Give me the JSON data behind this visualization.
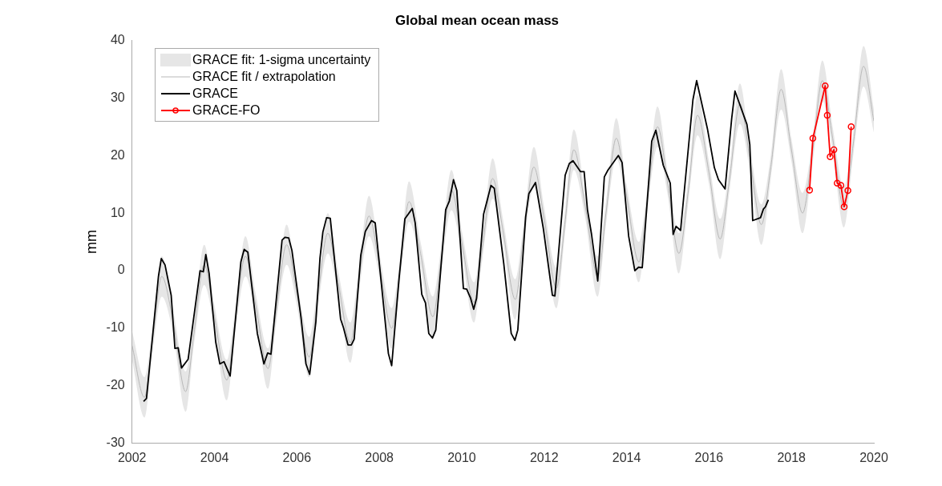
{
  "chart_data": {
    "type": "line",
    "title": "Global mean ocean mass",
    "ylabel": "mm",
    "xlim": [
      2002,
      2020
    ],
    "xticks": [
      2002,
      2004,
      2006,
      2008,
      2010,
      2012,
      2014,
      2016,
      2018,
      2020
    ],
    "ylim": [
      -30,
      40
    ],
    "yticks": [
      -30,
      -20,
      -10,
      0,
      10,
      20,
      30,
      40
    ],
    "grid": false,
    "legend": "top left",
    "annotations": [
      "GRACE fit: 1-sigma uncertainty"
    ],
    "series": [
      {
        "name": "GRACE fit / extrapolation",
        "type": "line",
        "color": "#b8b8b8",
        "marker": "none",
        "x": [
          2002.0,
          2002.3,
          2002.5,
          2002.72,
          2003.0,
          2003.3,
          2003.5,
          2003.75,
          2004.0,
          2004.3,
          2004.5,
          2004.75,
          2005.0,
          2005.3,
          2005.5,
          2005.75,
          2006.0,
          2006.3,
          2006.5,
          2006.75,
          2007.0,
          2007.3,
          2007.5,
          2007.75,
          2008.0,
          2008.3,
          2008.5,
          2008.72,
          2009.0,
          2009.3,
          2009.5,
          2009.75,
          2010.0,
          2010.3,
          2010.5,
          2010.75,
          2011.0,
          2011.3,
          2011.5,
          2011.75,
          2012.0,
          2012.3,
          2012.5,
          2012.72,
          2013.0,
          2013.3,
          2013.5,
          2013.75,
          2014.0,
          2014.3,
          2014.5,
          2014.75,
          2015.0,
          2015.27,
          2015.5,
          2015.72,
          2016.0,
          2016.27,
          2016.5,
          2016.75,
          2017.0,
          2017.27,
          2017.5,
          2017.75,
          2018.0,
          2018.27,
          2018.5,
          2018.75,
          2019.0,
          2019.27,
          2019.5,
          2019.75,
          2020.0
        ],
        "values": [
          -13,
          -22,
          -12,
          -1,
          -9,
          -21,
          -11,
          1,
          -8,
          -19,
          -9,
          2.5,
          -6,
          -17,
          -7,
          4.5,
          -4,
          -15,
          -5,
          6.5,
          -2,
          -12.5,
          -2,
          9.5,
          1,
          -10,
          0,
          12,
          3,
          -8,
          2,
          14,
          5,
          -5.5,
          4,
          16,
          7,
          -5,
          6,
          18,
          9,
          -3,
          8,
          21,
          11,
          -1,
          10,
          23,
          13,
          1.5,
          12,
          25,
          15,
          3,
          14,
          27,
          17,
          5.5,
          16,
          29,
          19,
          8,
          18,
          31.5,
          21,
          10,
          20,
          33,
          23,
          11,
          22,
          35.5,
          26
        ],
        "lower": [
          -15.5,
          -25.5,
          -14,
          -4.5,
          -11,
          -24.5,
          -13,
          -2.5,
          -10,
          -22.5,
          -11,
          -1,
          -8,
          -20.5,
          -9,
          1,
          -6,
          -18.5,
          -7,
          3,
          -4,
          -16,
          -4,
          6,
          -1,
          -13.5,
          -2,
          8.5,
          1,
          -11.5,
          0,
          10.5,
          3,
          -9,
          2,
          12.5,
          5,
          -8.5,
          4,
          14.5,
          7,
          -6.5,
          6,
          17.5,
          9,
          -4.5,
          8,
          19.5,
          11,
          -2,
          10,
          21.5,
          13,
          -0.5,
          12,
          23.5,
          15,
          2,
          14,
          25.5,
          17,
          4.5,
          16,
          28,
          19,
          6.5,
          18,
          29.5,
          21,
          7.5,
          20,
          32,
          24
        ],
        "upper": [
          -10.5,
          -18.5,
          -10,
          2.5,
          -7,
          -17.5,
          -9,
          4.5,
          -6,
          -15.5,
          -7,
          6,
          -4,
          -13.5,
          -5,
          8,
          -2,
          -11.5,
          -3,
          10,
          0,
          -9,
          0,
          13,
          3,
          -6.5,
          2,
          15.5,
          5,
          -4.5,
          4,
          17.5,
          7,
          -2,
          6,
          19.5,
          9,
          -1.5,
          8,
          21.5,
          11,
          0.5,
          10,
          24.5,
          13,
          2.5,
          12,
          26.5,
          15,
          5,
          14,
          28.5,
          17,
          6.5,
          16,
          30.5,
          19,
          9,
          18,
          32.5,
          21,
          11.5,
          20,
          35,
          23,
          13.5,
          22,
          36.5,
          25,
          14.5,
          24,
          39,
          28
        ]
      },
      {
        "name": "GRACE",
        "type": "line",
        "color": "#000000",
        "marker": "none",
        "x": [
          2002.28,
          2002.35,
          2002.64,
          2002.71,
          2002.8,
          2002.95,
          2003.04,
          2003.12,
          2003.2,
          2003.36,
          2003.65,
          2003.73,
          2003.79,
          2003.87,
          2004.03,
          2004.13,
          2004.23,
          2004.38,
          2004.64,
          2004.72,
          2004.81,
          2005.04,
          2005.2,
          2005.29,
          2005.37,
          2005.64,
          2005.71,
          2005.8,
          2005.88,
          2006.1,
          2006.22,
          2006.31,
          2006.46,
          2006.56,
          2006.63,
          2006.72,
          2006.81,
          2007.06,
          2007.13,
          2007.24,
          2007.32,
          2007.39,
          2007.55,
          2007.66,
          2007.81,
          2007.9,
          2008.05,
          2008.22,
          2008.3,
          2008.48,
          2008.62,
          2008.8,
          2008.87,
          2009.03,
          2009.12,
          2009.2,
          2009.29,
          2009.37,
          2009.61,
          2009.7,
          2009.8,
          2009.88,
          2010.04,
          2010.12,
          2010.21,
          2010.29,
          2010.36,
          2010.53,
          2010.71,
          2010.79,
          2011.02,
          2011.2,
          2011.29,
          2011.36,
          2011.55,
          2011.63,
          2011.79,
          2011.98,
          2012.2,
          2012.26,
          2012.51,
          2012.61,
          2012.7,
          2012.88,
          2012.97,
          2013.05,
          2013.15,
          2013.3,
          2013.46,
          2013.55,
          2013.8,
          2013.89,
          2014.05,
          2014.2,
          2014.29,
          2014.38,
          2014.61,
          2014.71,
          2014.89,
          2015.06,
          2015.13,
          2015.2,
          2015.31,
          2015.61,
          2015.7,
          2015.96,
          2016.13,
          2016.23,
          2016.39,
          2016.55,
          2016.63,
          2016.92,
          2016.99,
          2017.06,
          2017.25,
          2017.32,
          2017.37,
          2017.44
        ],
        "values": [
          -22.7,
          -22.2,
          -1,
          2.1,
          1,
          -4.3,
          -13.5,
          -13.4,
          -16.9,
          -15.4,
          0,
          -0.2,
          2.8,
          -0.5,
          -12.4,
          -16.2,
          -15.8,
          -18.3,
          1.5,
          3.7,
          3.2,
          -10.9,
          -16.2,
          -14.3,
          -14.5,
          5.3,
          5.8,
          5.7,
          3.5,
          -8.1,
          -16.2,
          -18,
          -8.9,
          2.2,
          6.7,
          9.2,
          9.1,
          -8.4,
          -9.9,
          -12.9,
          -12.9,
          -11.9,
          2.7,
          6.8,
          8.7,
          8.3,
          -2.3,
          -14.4,
          -16.5,
          -1.3,
          9,
          10.8,
          8.3,
          -4.1,
          -5.6,
          -10.9,
          -11.7,
          -10.3,
          10.6,
          12.1,
          15.8,
          13.9,
          -3.1,
          -3.2,
          -4.7,
          -6.7,
          -4.8,
          9.8,
          14.8,
          14.3,
          1.2,
          -10.9,
          -12.1,
          -10.3,
          9.3,
          13.4,
          15.3,
          7.3,
          -4.3,
          -4.4,
          16.6,
          18.6,
          19.1,
          17.2,
          17.2,
          10.6,
          6.3,
          -1.8,
          16.3,
          17.5,
          20,
          18.8,
          6,
          0,
          0.6,
          0.5,
          22.5,
          24.4,
          18.3,
          15.2,
          6.3,
          7.7,
          7,
          29.7,
          33,
          24.7,
          17.9,
          15.8,
          14.2,
          26.4,
          31.2,
          25.4,
          21.9,
          8.7,
          9.2,
          10.7,
          11.1,
          12.3
        ]
      },
      {
        "name": "GRACE-FO",
        "type": "line",
        "color": "#ff0000",
        "marker": "circle",
        "x": [
          2018.44,
          2018.52,
          2018.82,
          2018.87,
          2018.94,
          2019.03,
          2019.11,
          2019.2,
          2019.28,
          2019.37,
          2019.45
        ],
        "values": [
          14,
          23,
          32.1,
          27,
          19.8,
          21,
          15.2,
          14.8,
          11.1,
          13.9,
          25
        ]
      }
    ]
  }
}
